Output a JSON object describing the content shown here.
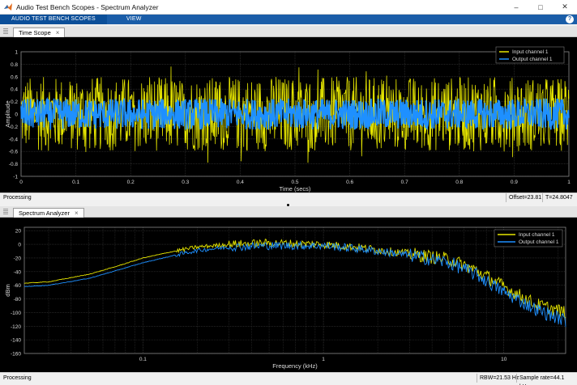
{
  "window": {
    "title": "Audio Test Bench Scopes - Spectrum Analyzer"
  },
  "ribbon": {
    "tabs": [
      "AUDIO TEST BENCH SCOPES",
      "VIEW"
    ],
    "help": "?"
  },
  "time_scope": {
    "tab_label": "Time Scope",
    "ylabel": "Amplitude",
    "xlabel": "Time (secs)",
    "yticks": [
      "1",
      "0.8",
      "0.6",
      "0.4",
      "0.2",
      "0",
      "-0.2",
      "-0.4",
      "-0.6",
      "-0.8",
      "-1"
    ],
    "xticks": [
      "0",
      "0.1",
      "0.2",
      "0.3",
      "0.4",
      "0.5",
      "0.6",
      "0.7",
      "0.8",
      "0.9",
      "1"
    ],
    "legend": [
      "Input channel 1",
      "Output channel 1"
    ],
    "status": {
      "text": "Processing",
      "offset": "Offset=23.81",
      "time": "T=24.8047"
    }
  },
  "spectrum": {
    "tab_label": "Spectrum Analyzer",
    "ylabel": "dBm",
    "xlabel": "Frequency (kHz)",
    "yticks": [
      "20",
      "0",
      "-20",
      "-40",
      "-60",
      "-80",
      "-100",
      "-120",
      "-140",
      "-160"
    ],
    "xticks": [
      "0.1",
      "1",
      "10"
    ],
    "legend": [
      "Input channel 1",
      "Output channel 1"
    ],
    "status": {
      "text": "Processing",
      "rbw": "RBW=21.53 Hz",
      "rate": "Sample rate=44.1 kHz"
    }
  },
  "colors": {
    "input": "#e6e600",
    "output": "#1e90ff",
    "grid": "#3a3a3a",
    "ribbon": "#1a5da8"
  },
  "chart_data": [
    {
      "type": "line",
      "title": "",
      "xlabel": "Time (secs)",
      "ylabel": "Amplitude",
      "xlim": [
        0,
        1
      ],
      "ylim": [
        -1,
        1
      ],
      "grid": true,
      "legend_position": "top-right",
      "series": [
        {
          "name": "Input channel 1",
          "envelope": [
            -0.6,
            0.6
          ],
          "peaks": [
            -0.9,
            0.9
          ]
        },
        {
          "name": "Output channel 1",
          "envelope": [
            -0.25,
            0.25
          ]
        }
      ]
    },
    {
      "type": "line",
      "title": "",
      "xlabel": "Frequency (kHz)",
      "ylabel": "dBm",
      "xscale": "log",
      "xlim": [
        0.022,
        22
      ],
      "ylim": [
        -160,
        25
      ],
      "grid": true,
      "legend_position": "top-right",
      "series": [
        {
          "name": "Input channel 1",
          "x": [
            0.022,
            0.03,
            0.05,
            0.07,
            0.1,
            0.15,
            0.2,
            0.3,
            0.5,
            0.7,
            1,
            1.5,
            2,
            3,
            5,
            7,
            10,
            15,
            22
          ],
          "y": [
            -57,
            -55,
            -44,
            -33,
            -20,
            -10,
            -4,
            0,
            2,
            1,
            0,
            -4,
            -8,
            -14,
            -22,
            -38,
            -62,
            -88,
            -100
          ]
        },
        {
          "name": "Output channel 1",
          "x": [
            0.022,
            0.03,
            0.05,
            0.07,
            0.1,
            0.15,
            0.2,
            0.3,
            0.5,
            0.7,
            1,
            1.5,
            2,
            3,
            5,
            7,
            10,
            15,
            22
          ],
          "y": [
            -62,
            -60,
            -50,
            -39,
            -27,
            -16,
            -9,
            -4,
            -2,
            -2,
            -2,
            -6,
            -10,
            -16,
            -27,
            -44,
            -70,
            -95,
            -112
          ]
        }
      ]
    }
  ]
}
